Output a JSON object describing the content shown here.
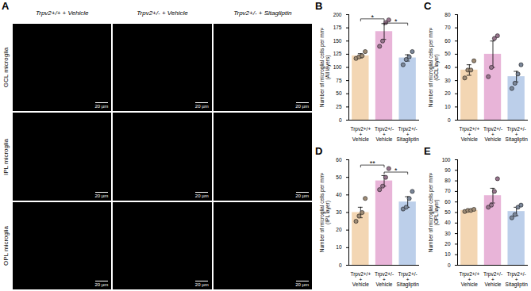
{
  "image_panel": {
    "label": "A",
    "columns": [
      "Trpv2+/+ + Vehicle",
      "Trpv2+/- + Vehicle",
      "Trpv2+/- + Sitagliptin"
    ],
    "rows": [
      "GCL microglia",
      "IPL microglia",
      "OPL microglia"
    ],
    "scale_bar": "20 µm"
  },
  "chart_data": [
    {
      "type": "bar",
      "title": "B",
      "ylabel": "Number of microglial cells per mm²\n(All layers)",
      "categories": [
        "Trpv2+/+ + Vehicle",
        "Trpv2+/- + Vehicle",
        "Trpv2+/- + Sitagliptin"
      ],
      "values": [
        122,
        168,
        118
      ],
      "errors": [
        4,
        15,
        6
      ],
      "points": [
        [
          117,
          120,
          122,
          130
        ],
        [
          140,
          150,
          185,
          190
        ],
        [
          105,
          115,
          120,
          130
        ]
      ],
      "colors": [
        "#f3d6b3",
        "#e8b4d8",
        "#bccfea"
      ],
      "ylim": [
        0,
        200
      ],
      "yticks": [
        0,
        25,
        50,
        75,
        100,
        125,
        150,
        175,
        200
      ],
      "annotations": [
        {
          "from": 0,
          "to": 1,
          "y": 192,
          "text": "*"
        },
        {
          "from": 1,
          "to": 2,
          "y": 184,
          "text": "*"
        }
      ]
    },
    {
      "type": "bar",
      "title": "C",
      "ylabel": "Number of microglial cells per mm²\n(GCL layer)",
      "categories": [
        "Trpv2+/+ + Vehicle",
        "Trpv2+/- + Vehicle",
        "Trpv2+/- + Sitagliptin"
      ],
      "values": [
        38,
        50,
        33
      ],
      "errors": [
        4,
        10,
        4
      ],
      "points": [
        [
          32,
          38,
          38,
          45
        ],
        [
          33,
          40,
          62,
          64
        ],
        [
          24,
          28,
          35,
          42
        ]
      ],
      "colors": [
        "#f3d6b3",
        "#e8b4d8",
        "#bccfea"
      ],
      "ylim": [
        0,
        80
      ],
      "yticks": [
        0,
        10,
        20,
        30,
        40,
        50,
        60,
        70,
        80
      ],
      "annotations": []
    },
    {
      "type": "bar",
      "title": "D",
      "ylabel": "Number of microglial cells per mm²\n(IPL layer)",
      "categories": [
        "Trpv2+/+ + Vehicle",
        "Trpv2+/- + Vehicle",
        "Trpv2+/- + Sitagliptin"
      ],
      "values": [
        30,
        48,
        36
      ],
      "errors": [
        3,
        3,
        3
      ],
      "points": [
        [
          25,
          28,
          30,
          38
        ],
        [
          43,
          45,
          50,
          55
        ],
        [
          32,
          33,
          38,
          42
        ]
      ],
      "colors": [
        "#f3d6b3",
        "#e8b4d8",
        "#bccfea"
      ],
      "ylim": [
        0,
        60
      ],
      "yticks": [
        0,
        10,
        20,
        30,
        40,
        50,
        60
      ],
      "annotations": [
        {
          "from": 0,
          "to": 1,
          "y": 57,
          "text": "**"
        },
        {
          "from": 1,
          "to": 2,
          "y": 53,
          "text": "*"
        }
      ]
    },
    {
      "type": "bar",
      "title": "E",
      "ylabel": "Number of microglial cells per mm²\n(OPL layer)",
      "categories": [
        "Trpv2+/+ + Vehicle",
        "Trpv2+/- + Vehicle",
        "Trpv2+/- + Sitagliptin"
      ],
      "values": [
        52,
        66,
        51
      ],
      "errors": [
        1,
        7,
        4
      ],
      "points": [
        [
          51,
          52,
          52,
          53
        ],
        [
          55,
          57,
          70,
          82
        ],
        [
          45,
          48,
          55,
          57
        ]
      ],
      "colors": [
        "#f3d6b3",
        "#e8b4d8",
        "#bccfea"
      ],
      "ylim": [
        0,
        100
      ],
      "yticks": [
        0,
        10,
        20,
        30,
        40,
        50,
        60,
        70,
        80,
        90,
        100
      ],
      "annotations": []
    }
  ]
}
